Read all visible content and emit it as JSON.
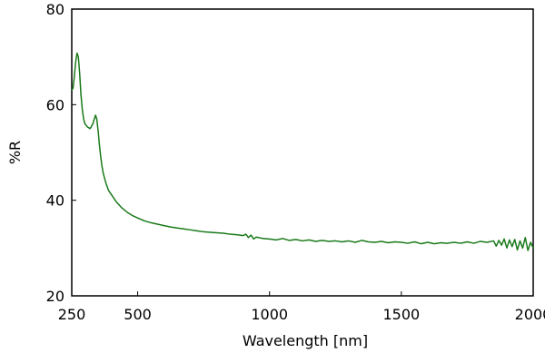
{
  "chart_data": {
    "type": "line",
    "xlabel": "Wavelength [nm]",
    "ylabel": "%R",
    "xlim": [
      250,
      2000
    ],
    "ylim": [
      20,
      80
    ],
    "x_ticks": [
      250,
      500,
      1000,
      1500,
      2000
    ],
    "y_ticks": [
      20,
      40,
      60,
      80
    ],
    "grid": false,
    "series_color": "#1a7a1a",
    "series": [
      {
        "x": [
          250,
          255,
          260,
          265,
          270,
          275,
          280,
          285,
          290,
          295,
          300,
          310,
          320,
          330,
          340,
          345,
          350,
          355,
          360,
          365,
          370,
          380,
          390,
          400,
          420,
          440,
          460,
          480,
          500,
          525,
          550,
          575,
          600,
          625,
          650,
          675,
          700,
          725,
          750,
          775,
          800,
          825,
          850,
          875,
          900,
          910,
          920,
          930,
          940,
          950,
          975,
          1000,
          1025,
          1050,
          1075,
          1100,
          1125,
          1150,
          1175,
          1200,
          1225,
          1250,
          1275,
          1300,
          1325,
          1350,
          1375,
          1400,
          1425,
          1450,
          1475,
          1500,
          1525,
          1550,
          1575,
          1600,
          1625,
          1650,
          1675,
          1700,
          1725,
          1750,
          1775,
          1800,
          1825,
          1850,
          1860,
          1870,
          1880,
          1890,
          1900,
          1910,
          1920,
          1930,
          1940,
          1950,
          1960,
          1970,
          1980,
          1990,
          2000
        ],
        "y": [
          63.0,
          63.5,
          66.0,
          69.0,
          70.8,
          70.0,
          66.5,
          62.0,
          59.0,
          57.0,
          56.0,
          55.3,
          55.0,
          56.0,
          57.8,
          57.0,
          54.5,
          51.5,
          49.0,
          47.0,
          45.5,
          43.5,
          42.0,
          41.2,
          39.6,
          38.4,
          37.5,
          36.8,
          36.3,
          35.7,
          35.3,
          35.0,
          34.7,
          34.4,
          34.2,
          34.0,
          33.8,
          33.6,
          33.4,
          33.3,
          33.2,
          33.1,
          32.9,
          32.8,
          32.6,
          32.9,
          32.2,
          32.7,
          31.9,
          32.3,
          32.0,
          31.9,
          31.7,
          32.0,
          31.6,
          31.8,
          31.5,
          31.7,
          31.4,
          31.6,
          31.4,
          31.5,
          31.3,
          31.5,
          31.2,
          31.6,
          31.3,
          31.2,
          31.4,
          31.1,
          31.3,
          31.2,
          31.0,
          31.3,
          30.9,
          31.2,
          30.9,
          31.1,
          31.0,
          31.2,
          31.0,
          31.3,
          31.0,
          31.4,
          31.2,
          31.5,
          30.4,
          31.6,
          30.6,
          31.9,
          30.0,
          31.7,
          30.3,
          31.8,
          29.6,
          31.5,
          30.0,
          32.2,
          29.5,
          31.2,
          30.0
        ]
      }
    ]
  }
}
